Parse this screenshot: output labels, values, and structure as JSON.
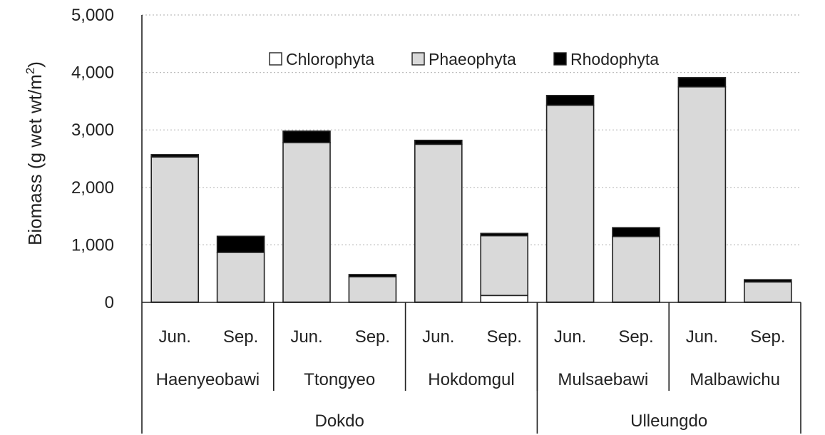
{
  "chart_data": {
    "type": "bar",
    "stacked": true,
    "ylabel_main": "Biomass (g wet wt/m",
    "ylabel_sup": "2",
    "ylabel_end": ")",
    "ylim": [
      0,
      5000
    ],
    "yticks": [
      0,
      1000,
      2000,
      3000,
      4000,
      5000
    ],
    "ytick_labels": [
      "0",
      "1,000",
      "2,000",
      "3,000",
      "4,000",
      "5,000"
    ],
    "grid": true,
    "legend_position": "top",
    "categories": [
      "Jun.",
      "Sep.",
      "Jun.",
      "Sep.",
      "Jun.",
      "Sep.",
      "Jun.",
      "Sep.",
      "Jun.",
      "Sep."
    ],
    "sites": [
      {
        "name": "Haenyeobawi",
        "span": [
          0,
          1
        ]
      },
      {
        "name": "Ttongyeo",
        "span": [
          2,
          3
        ]
      },
      {
        "name": "Hokdomgul",
        "span": [
          4,
          5
        ]
      },
      {
        "name": "Mulsaebawi",
        "span": [
          6,
          7
        ]
      },
      {
        "name": "Malbawichu",
        "span": [
          8,
          9
        ]
      }
    ],
    "regions": [
      {
        "name": "Dokdo",
        "span": [
          0,
          5
        ]
      },
      {
        "name": "Ulleungdo",
        "span": [
          6,
          9
        ]
      }
    ],
    "series": [
      {
        "name": "Chlorophyta",
        "color": "#ffffff",
        "values": [
          5,
          5,
          5,
          5,
          5,
          120,
          5,
          5,
          5,
          5
        ]
      },
      {
        "name": "Phaeophyta",
        "color": "#d9d9d9",
        "values": [
          2525,
          865,
          2775,
          440,
          2745,
          1040,
          3425,
          1140,
          3745,
          350
        ]
      },
      {
        "name": "Rhodophyta",
        "color": "#000000",
        "values": [
          40,
          280,
          200,
          40,
          70,
          40,
          170,
          155,
          160,
          40
        ]
      }
    ]
  }
}
